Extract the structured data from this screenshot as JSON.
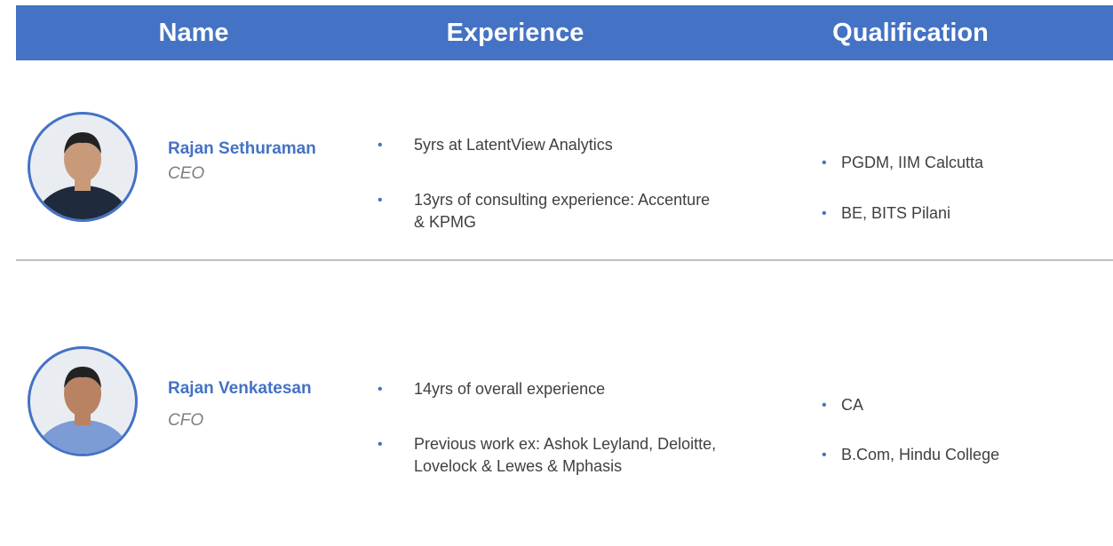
{
  "header": {
    "columns": [
      "Name",
      "Experience",
      "Qualification"
    ]
  },
  "people": [
    {
      "name": "Rajan Sethuraman",
      "role": "CEO",
      "experience": [
        "5yrs at LatentView Analytics",
        "13yrs of consulting experience: Accenture & KPMG"
      ],
      "qualification": [
        "PGDM,  IIM Calcutta",
        "BE, BITS Pilani"
      ]
    },
    {
      "name": "Rajan Venkatesan",
      "role": "CFO",
      "experience": [
        "14yrs of overall experience",
        "Previous work ex: Ashok Leyland, Deloitte, Lovelock & Lewes & Mphasis"
      ],
      "qualification": [
        "CA",
        "B.Com, Hindu College"
      ]
    }
  ]
}
